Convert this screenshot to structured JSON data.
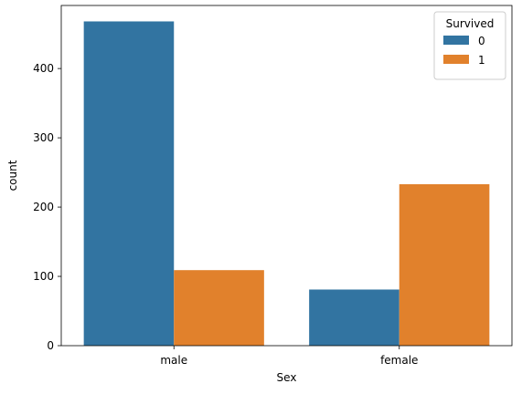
{
  "chart_data": {
    "type": "bar",
    "categories": [
      "male",
      "female"
    ],
    "series": [
      {
        "name": "0",
        "values": [
          468,
          81
        ],
        "color": "#3274a1"
      },
      {
        "name": "1",
        "values": [
          109,
          233
        ],
        "color": "#e1812c"
      }
    ],
    "xlabel": "Sex",
    "ylabel": "count",
    "ylim": [
      0,
      491
    ],
    "yticks": [
      0,
      100,
      200,
      300,
      400
    ],
    "legend": {
      "title": "Survived",
      "placement": "top-right"
    },
    "grid": false
  }
}
